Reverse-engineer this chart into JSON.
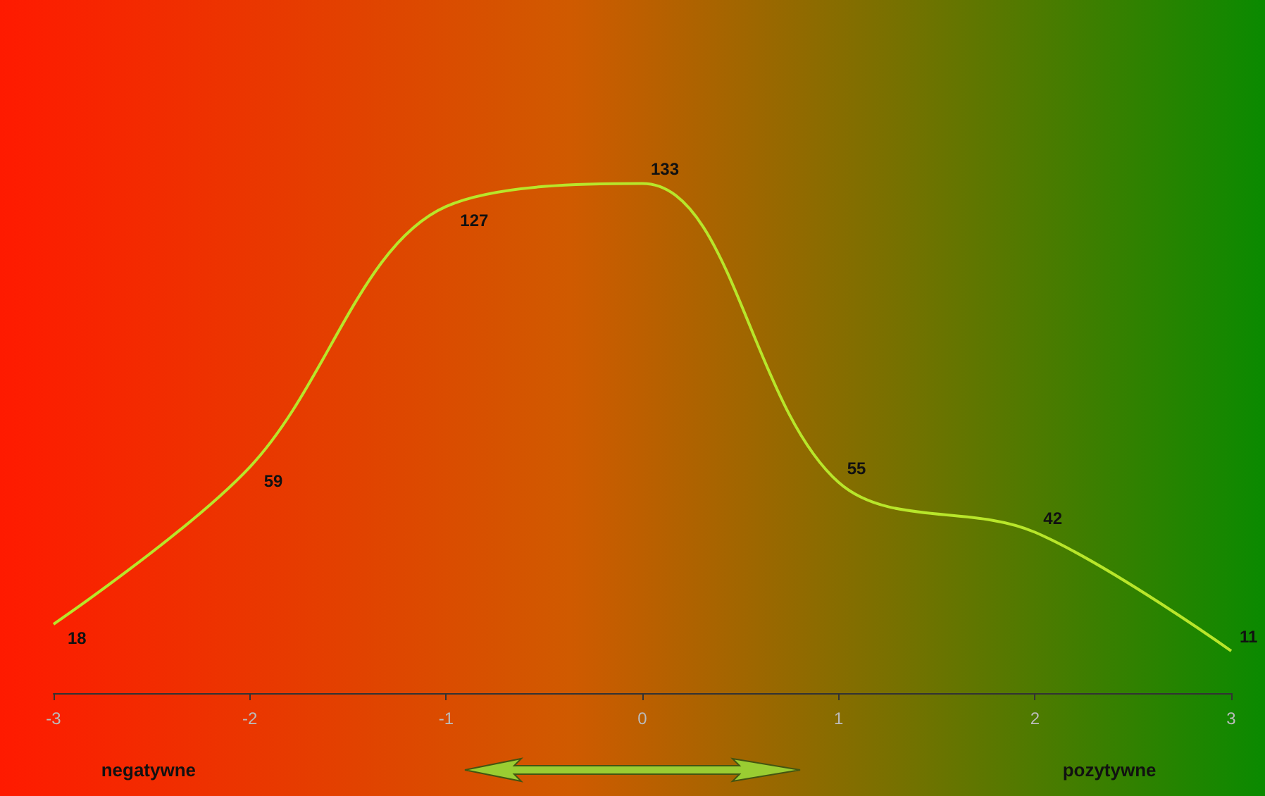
{
  "chart_data": {
    "type": "line",
    "x": [
      -3,
      -2,
      -1,
      0,
      1,
      2,
      3
    ],
    "series": [
      {
        "color": "#b8e62a",
        "values": [
          18,
          59,
          127,
          133,
          55,
          42,
          11
        ]
      }
    ],
    "xlim": [
      -3,
      3
    ],
    "xticks": [
      -3,
      -2,
      -1,
      0,
      1,
      2,
      3
    ],
    "data_labels": true,
    "marker": "none",
    "grid": false,
    "tick_labels": "x",
    "annotations": [
      "negatywne",
      "pozytywne"
    ]
  }
}
